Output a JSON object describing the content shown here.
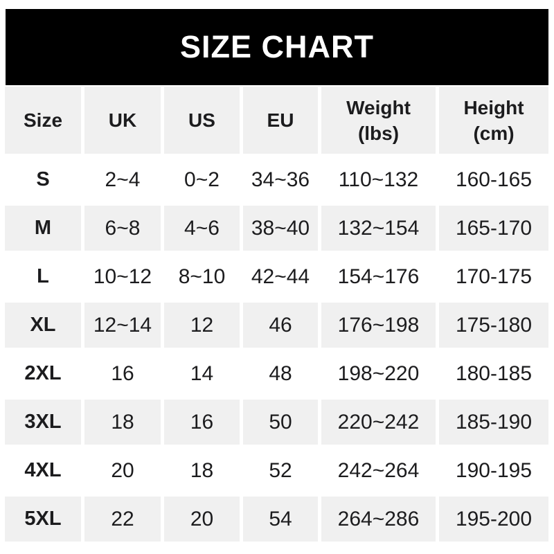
{
  "banner": {
    "title": "SIZE CHART"
  },
  "chart_data": {
    "type": "table",
    "title": "SIZE CHART",
    "columns": [
      "Size",
      "UK",
      "US",
      "EU",
      "Weight (lbs)",
      "Height (cm)"
    ],
    "header_lines": [
      [
        "Size"
      ],
      [
        "UK"
      ],
      [
        "US"
      ],
      [
        "EU"
      ],
      [
        "Weight",
        "(lbs)"
      ],
      [
        "Height",
        "(cm)"
      ]
    ],
    "rows": [
      [
        "S",
        "2~4",
        "0~2",
        "34~36",
        "110~132",
        "160-165"
      ],
      [
        "M",
        "6~8",
        "4~6",
        "38~40",
        "132~154",
        "165-170"
      ],
      [
        "L",
        "10~12",
        "8~10",
        "42~44",
        "154~176",
        "170-175"
      ],
      [
        "XL",
        "12~14",
        "12",
        "46",
        "176~198",
        "175-180"
      ],
      [
        "2XL",
        "16",
        "14",
        "48",
        "198~220",
        "180-185"
      ],
      [
        "3XL",
        "18",
        "16",
        "50",
        "220~242",
        "185-190"
      ],
      [
        "4XL",
        "20",
        "18",
        "52",
        "242~264",
        "190-195"
      ],
      [
        "5XL",
        "22",
        "20",
        "54",
        "264~286",
        "195-200"
      ]
    ]
  },
  "colors": {
    "banner_bg": "#000000",
    "banner_text": "#ffffff",
    "cell_gray": "#f0f0f0",
    "cell_white": "#ffffff",
    "text": "#1c1c1e"
  }
}
